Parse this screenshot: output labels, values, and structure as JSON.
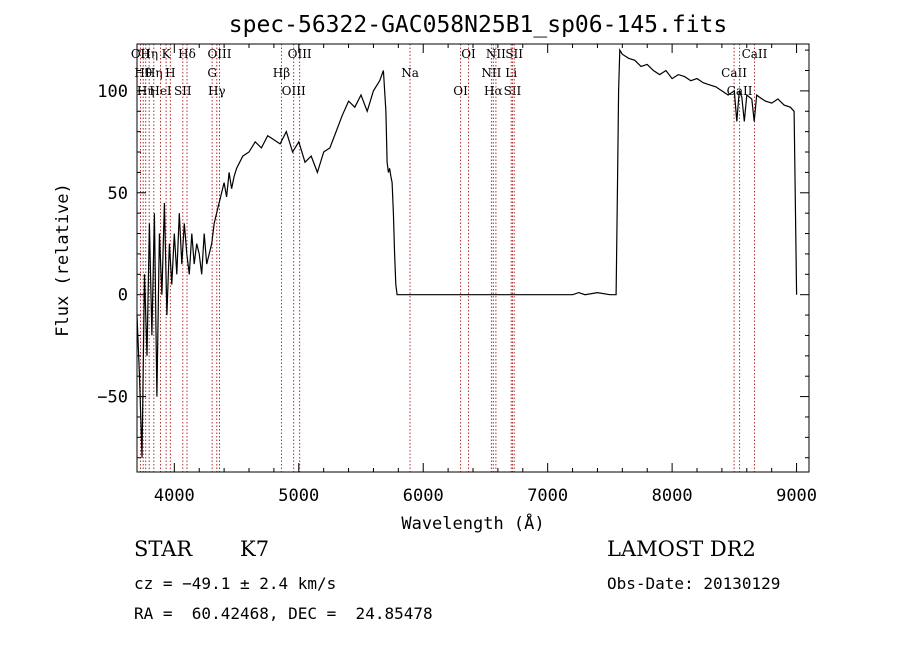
{
  "chart_data": {
    "type": "line",
    "title": "spec-56322-GAC058N25B1_sp06-145.fits",
    "xlabel": "Wavelength (Å)",
    "ylabel": "Flux (relative)",
    "xlim": [
      3700,
      9100
    ],
    "ylim": [
      -87,
      123
    ],
    "xticks": [
      4000,
      5000,
      6000,
      7000,
      8000,
      9000
    ],
    "yticks": [
      -50,
      0,
      50,
      100
    ],
    "xtick_labels": [
      "4000",
      "5000",
      "6000",
      "7000",
      "8000",
      "9000"
    ],
    "ytick_labels": [
      "−50",
      "0",
      "50",
      "100"
    ],
    "series": [
      {
        "x": [
          3700,
          3720,
          3740,
          3760,
          3780,
          3800,
          3820,
          3840,
          3860,
          3880,
          3900,
          3920,
          3940,
          3960,
          3980,
          4000,
          4020,
          4040,
          4060,
          4080,
          4100,
          4120,
          4140,
          4160,
          4180,
          4200,
          4220,
          4240,
          4260,
          4280,
          4300,
          4320,
          4340,
          4360,
          4380,
          4400,
          4420,
          4440,
          4460,
          4480,
          4500,
          4550,
          4600,
          4650,
          4700,
          4750,
          4800,
          4850,
          4900,
          4950,
          5000,
          5050,
          5100,
          5150,
          5200,
          5250,
          5300,
          5350,
          5400,
          5450,
          5500,
          5550,
          5600,
          5650,
          5680,
          5700,
          5710,
          5720,
          5730,
          5740,
          5750,
          5760,
          5770,
          5780,
          5790,
          5800,
          5900,
          6000,
          6500,
          7000,
          7200,
          7250,
          7300,
          7400,
          7500,
          7550,
          7560,
          7570,
          7580,
          7600,
          7650,
          7700,
          7750,
          7800,
          7850,
          7900,
          7950,
          8000,
          8050,
          8100,
          8150,
          8200,
          8250,
          8300,
          8350,
          8400,
          8450,
          8500,
          8520,
          8540,
          8560,
          8580,
          8600,
          8640,
          8660,
          8680,
          8700,
          8750,
          8800,
          8850,
          8900,
          8950,
          8980,
          9000
        ],
        "y": [
          -10,
          -40,
          -80,
          10,
          -30,
          35,
          -20,
          40,
          -50,
          30,
          0,
          45,
          -10,
          25,
          5,
          30,
          10,
          40,
          15,
          35,
          20,
          10,
          30,
          15,
          25,
          20,
          10,
          30,
          15,
          20,
          25,
          35,
          40,
          45,
          50,
          55,
          48,
          60,
          52,
          58,
          62,
          68,
          70,
          75,
          72,
          78,
          76,
          74,
          80,
          70,
          75,
          65,
          68,
          60,
          70,
          72,
          80,
          88,
          95,
          92,
          98,
          90,
          100,
          105,
          110,
          90,
          65,
          60,
          62,
          58,
          55,
          40,
          20,
          5,
          0,
          0,
          0,
          0,
          0,
          0,
          0,
          1,
          0,
          1,
          0,
          0,
          50,
          100,
          120,
          118,
          116,
          115,
          112,
          113,
          110,
          108,
          110,
          106,
          108,
          107,
          105,
          106,
          104,
          103,
          102,
          100,
          98,
          100,
          85,
          100,
          97,
          85,
          98,
          96,
          85,
          98,
          97,
          95,
          94,
          96,
          93,
          92,
          90,
          0
        ]
      }
    ],
    "lines": [
      {
        "x": 3728,
        "label": "OII"
      },
      {
        "x": 3750,
        "label": "Hθ"
      },
      {
        "x": 3770,
        "label": "Hη"
      },
      {
        "x": 3798,
        "label": "Hη"
      },
      {
        "x": 3835,
        "label": "Hη"
      },
      {
        "x": 3889,
        "label": "HeI"
      },
      {
        "x": 3934,
        "label": "K"
      },
      {
        "x": 3968,
        "label": "H"
      },
      {
        "x": 4068,
        "label": "SII"
      },
      {
        "x": 4102,
        "label": "Hδ"
      },
      {
        "x": 4304,
        "label": "G"
      },
      {
        "x": 4341,
        "label": "Hγ"
      },
      {
        "x": 4363,
        "label": "OIII"
      },
      {
        "x": 4861,
        "label": "Hβ"
      },
      {
        "x": 4959,
        "label": "OIII"
      },
      {
        "x": 5007,
        "label": "OIII"
      },
      {
        "x": 5894,
        "label": "Na"
      },
      {
        "x": 6300,
        "label": "OI"
      },
      {
        "x": 6364,
        "label": "OI"
      },
      {
        "x": 6548,
        "label": "NII"
      },
      {
        "x": 6563,
        "label": "Hα"
      },
      {
        "x": 6584,
        "label": "NII"
      },
      {
        "x": 6707,
        "label": "Li"
      },
      {
        "x": 6717,
        "label": "SII"
      },
      {
        "x": 6731,
        "label": "SII"
      },
      {
        "x": 8498,
        "label": "CaII"
      },
      {
        "x": 8542,
        "label": "CaII"
      },
      {
        "x": 8662,
        "label": "CaII"
      }
    ]
  },
  "info": {
    "object_class": "STAR",
    "subclass": "K7",
    "survey": "LAMOST DR2",
    "redshift": "cz = −49.1 ± 2.4 km/s",
    "obs_date": "Obs-Date: 20130129",
    "coords": "RA =  60.42468, DEC =  24.85478"
  }
}
